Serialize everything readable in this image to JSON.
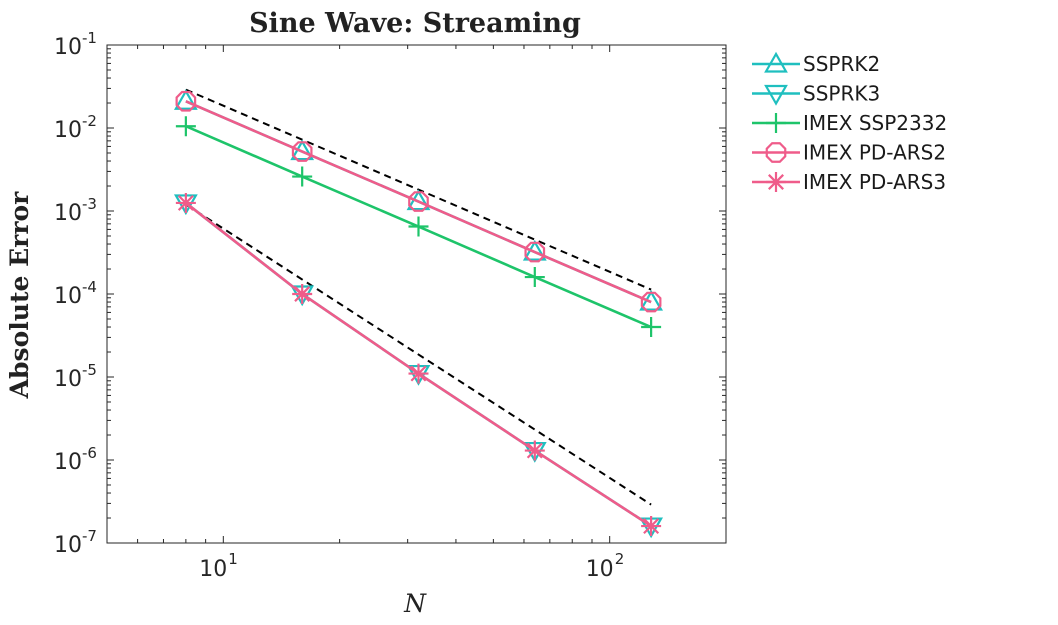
{
  "chart_data": {
    "type": "line",
    "title": "Sine Wave: Streaming",
    "xlabel": "N",
    "ylabel": "Absolute Error",
    "xscale": "log",
    "yscale": "log",
    "xlim": [
      5,
      200
    ],
    "ylim": [
      1e-07,
      0.1
    ],
    "x_ticks": [
      {
        "value": 10,
        "base": "10",
        "exp": "1"
      },
      {
        "value": 100,
        "base": "10",
        "exp": "2"
      }
    ],
    "y_ticks": [
      {
        "value": 0.1,
        "base": "10",
        "exp": "-1"
      },
      {
        "value": 0.01,
        "base": "10",
        "exp": "-2"
      },
      {
        "value": 0.001,
        "base": "10",
        "exp": "-3"
      },
      {
        "value": 0.0001,
        "base": "10",
        "exp": "-4"
      },
      {
        "value": 1e-05,
        "base": "10",
        "exp": "-5"
      },
      {
        "value": 1e-06,
        "base": "10",
        "exp": "-6"
      },
      {
        "value": 1e-07,
        "base": "10",
        "exp": "-7"
      }
    ],
    "grid": false,
    "legend_position": "outside-right",
    "x": [
      8,
      16,
      32,
      64,
      128
    ],
    "series": [
      {
        "name": "SSPRK2",
        "color": "#1fbfbf",
        "marker": "triangle-up",
        "values": [
          0.021,
          0.0052,
          0.0013,
          0.00032,
          8e-05
        ]
      },
      {
        "name": "SSPRK3",
        "color": "#1fbfbf",
        "marker": "triangle-down",
        "values": [
          0.00125,
          0.0001,
          1.1e-05,
          1.3e-06,
          1.6e-07
        ]
      },
      {
        "name": "IMEX SSP2332",
        "color": "#1ec46a",
        "marker": "plus",
        "values": [
          0.0105,
          0.0026,
          0.00065,
          0.00016,
          4e-05
        ]
      },
      {
        "name": "IMEX PD-ARS2",
        "color": "#ef5c8a",
        "marker": "octagon",
        "values": [
          0.021,
          0.0052,
          0.0013,
          0.00032,
          8e-05
        ]
      },
      {
        "name": "IMEX PD-ARS3",
        "color": "#ef5c8a",
        "marker": "asterisk",
        "values": [
          0.00125,
          0.0001,
          1.1e-05,
          1.3e-06,
          1.6e-07
        ]
      }
    ],
    "reference_lines": [
      {
        "style": "dashed",
        "color": "#000000",
        "x": [
          8,
          128
        ],
        "values": [
          0.029,
          0.000113
        ]
      },
      {
        "style": "dashed",
        "color": "#000000",
        "x": [
          8,
          128
        ],
        "values": [
          0.0012,
          2.9e-07
        ]
      }
    ]
  }
}
